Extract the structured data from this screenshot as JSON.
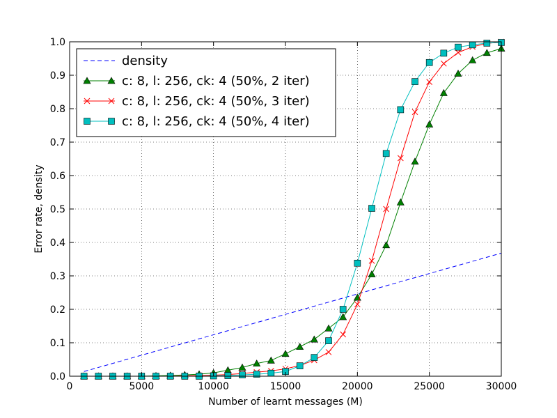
{
  "chart_data": {
    "type": "line",
    "xlabel": "Number of learnt messages (M)",
    "ylabel": "Error rate, density",
    "xlim": [
      0,
      30000
    ],
    "ylim": [
      0,
      1.0
    ],
    "xticks": [
      0,
      5000,
      10000,
      15000,
      20000,
      25000,
      30000
    ],
    "yticks": [
      0.0,
      0.1,
      0.2,
      0.3,
      0.4,
      0.5,
      0.6,
      0.7,
      0.8,
      0.9,
      1.0
    ],
    "xtick_labels": [
      "0",
      "5000",
      "10000",
      "15000",
      "20000",
      "25000",
      "30000"
    ],
    "ytick_labels": [
      "0.0",
      "0.1",
      "0.2",
      "0.3",
      "0.4",
      "0.5",
      "0.6",
      "0.7",
      "0.8",
      "0.9",
      "1.0"
    ],
    "grid": true,
    "legend_position": "top-left",
    "series": [
      {
        "name": "density",
        "color": "#0000ff",
        "style": "dashed",
        "marker": "none",
        "x": [
          1000,
          30000
        ],
        "y": [
          0.014,
          0.368
        ]
      },
      {
        "name": "c: 8, l: 256, ck: 4 (50%, 2 iter)",
        "color": "#008000",
        "style": "solid",
        "marker": "triangle",
        "x": [
          1000,
          2000,
          3000,
          4000,
          5000,
          6000,
          7000,
          8000,
          9000,
          10000,
          11000,
          12000,
          13000,
          14000,
          15000,
          16000,
          17000,
          18000,
          19000,
          20000,
          21000,
          22000,
          23000,
          24000,
          25000,
          26000,
          27000,
          28000,
          29000,
          30000
        ],
        "y": [
          0.0,
          0.0,
          0.0,
          0.0,
          0.0,
          0.001,
          0.002,
          0.004,
          0.006,
          0.01,
          0.018,
          0.026,
          0.038,
          0.047,
          0.067,
          0.088,
          0.11,
          0.143,
          0.177,
          0.235,
          0.305,
          0.392,
          0.52,
          0.642,
          0.753,
          0.847,
          0.905,
          0.945,
          0.967,
          0.98
        ]
      },
      {
        "name": "c: 8, l: 256, ck: 4 (50%, 3 iter)",
        "color": "#ff0000",
        "style": "solid",
        "marker": "x",
        "x": [
          1000,
          2000,
          3000,
          4000,
          5000,
          6000,
          7000,
          8000,
          9000,
          10000,
          11000,
          12000,
          13000,
          14000,
          15000,
          16000,
          17000,
          18000,
          19000,
          20000,
          21000,
          22000,
          23000,
          24000,
          25000,
          26000,
          27000,
          28000,
          29000,
          30000
        ],
        "y": [
          0.0,
          0.0,
          0.0,
          0.0,
          0.0,
          0.0,
          0.0,
          0.001,
          0.002,
          0.003,
          0.005,
          0.008,
          0.012,
          0.016,
          0.022,
          0.032,
          0.048,
          0.072,
          0.125,
          0.215,
          0.345,
          0.5,
          0.652,
          0.79,
          0.88,
          0.935,
          0.968,
          0.985,
          0.995,
          1.0
        ]
      },
      {
        "name": "c: 8, l: 256, ck: 4 (50%, 4 iter)",
        "color": "#00bfbf",
        "style": "solid",
        "marker": "square",
        "x": [
          1000,
          2000,
          3000,
          4000,
          5000,
          6000,
          7000,
          8000,
          9000,
          10000,
          11000,
          12000,
          13000,
          14000,
          15000,
          16000,
          17000,
          18000,
          19000,
          20000,
          21000,
          22000,
          23000,
          24000,
          25000,
          26000,
          27000,
          28000,
          29000,
          30000
        ],
        "y": [
          0.0,
          0.0,
          0.0,
          0.0,
          0.0,
          0.0,
          0.0,
          0.0,
          0.0,
          0.001,
          0.002,
          0.004,
          0.006,
          0.009,
          0.014,
          0.031,
          0.056,
          0.106,
          0.2,
          0.338,
          0.502,
          0.666,
          0.797,
          0.881,
          0.938,
          0.966,
          0.984,
          0.991,
          0.996,
          0.998
        ]
      }
    ]
  }
}
